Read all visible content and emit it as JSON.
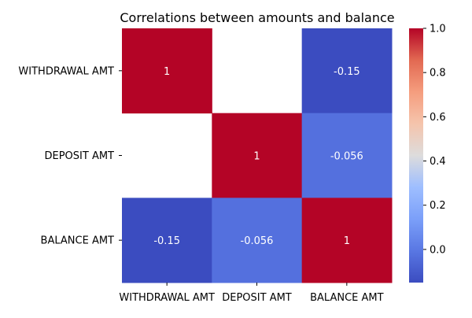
{
  "chart_data": {
    "type": "heatmap",
    "title": "Correlations between amounts and balance",
    "xlabel": "",
    "ylabel": "",
    "x_categories": [
      "WITHDRAWAL AMT",
      "DEPOSIT AMT",
      "BALANCE AMT"
    ],
    "y_categories": [
      "WITHDRAWAL AMT",
      "DEPOSIT AMT",
      "BALANCE AMT"
    ],
    "matrix": [
      [
        1,
        null,
        -0.15
      ],
      [
        null,
        1,
        -0.056
      ],
      [
        -0.15,
        -0.056,
        1
      ]
    ],
    "cell_labels": [
      [
        "1",
        "",
        "-0.15"
      ],
      [
        "",
        "1",
        "-0.056"
      ],
      [
        "-0.15",
        "-0.056",
        "1"
      ]
    ],
    "colormap": "coolwarm",
    "colors": {
      "-0.15": "#3b4cc0",
      "-0.056": "#5470de",
      "1": "#b40426"
    },
    "colorbar": {
      "range": [
        -0.15,
        1
      ],
      "ticks": [
        0.0,
        0.2,
        0.4,
        0.6,
        0.8,
        1.0
      ],
      "tick_labels": [
        "0.0",
        "0.2",
        "0.4",
        "0.6",
        "0.8",
        "1.0"
      ]
    },
    "grid": false,
    "legend": "colorbar-right"
  }
}
